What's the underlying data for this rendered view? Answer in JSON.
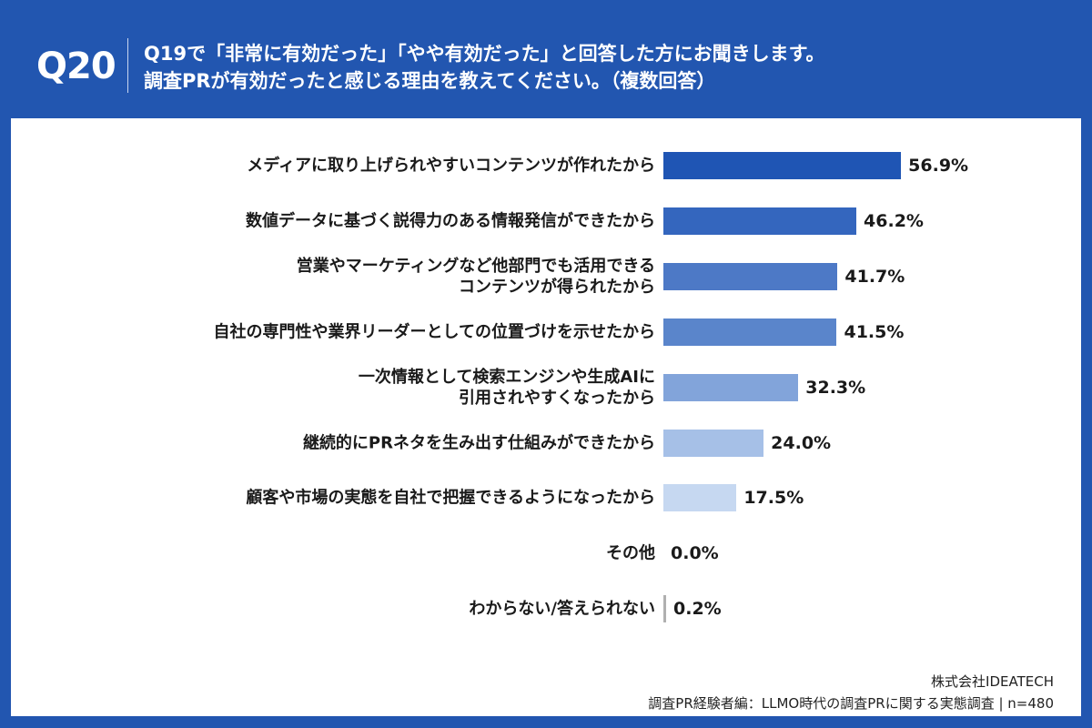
{
  "header": {
    "question_number": "Q20",
    "question_line1": "Q19で「非常に有効だった」「やや有効だった」と回答した方にお聞きします。",
    "question_line2": "調査PRが有効だったと感じる理由を教えてください。（複数回答）"
  },
  "chart_data": {
    "type": "bar",
    "orientation": "horizontal",
    "categories": [
      "メディアに取り上げられやすいコンテンツが作れたから",
      "数値データに基づく説得力のある情報発信ができたから",
      "営業やマーケティングなど他部門でも活用できる\nコンテンツが得られたから",
      "自社の専門性や業界リーダーとしての位置づけを示せたから",
      "一次情報として検索エンジンや生成AIに\n引用されやすくなったから",
      "継続的にPRネタを生み出す仕組みができたから",
      "顧客や市場の実態を自社で把握できるようになったから",
      "その他",
      "わからない/答えられない"
    ],
    "values": [
      56.9,
      46.2,
      41.7,
      41.5,
      32.3,
      24.0,
      17.5,
      0.0,
      0.2
    ],
    "value_labels": [
      "56.9%",
      "46.2%",
      "41.7%",
      "41.5%",
      "32.3%",
      "24.0%",
      "17.5%",
      "0.0%",
      "0.2%"
    ],
    "colors": [
      "#1f55b4",
      "#3466be",
      "#4d79c6",
      "#5a85cb",
      "#82a4da",
      "#a6c0e7",
      "#c6d8f1",
      "#cccccc",
      "#b0b0b0"
    ],
    "unit": "%",
    "xlim": [
      0,
      100
    ],
    "grid": false,
    "legend": "none"
  },
  "footer": {
    "company": "株式会社IDEATECH",
    "survey": "調査PR経験者編：LLMO時代の調査PRに関する実態調査 | n=480"
  }
}
